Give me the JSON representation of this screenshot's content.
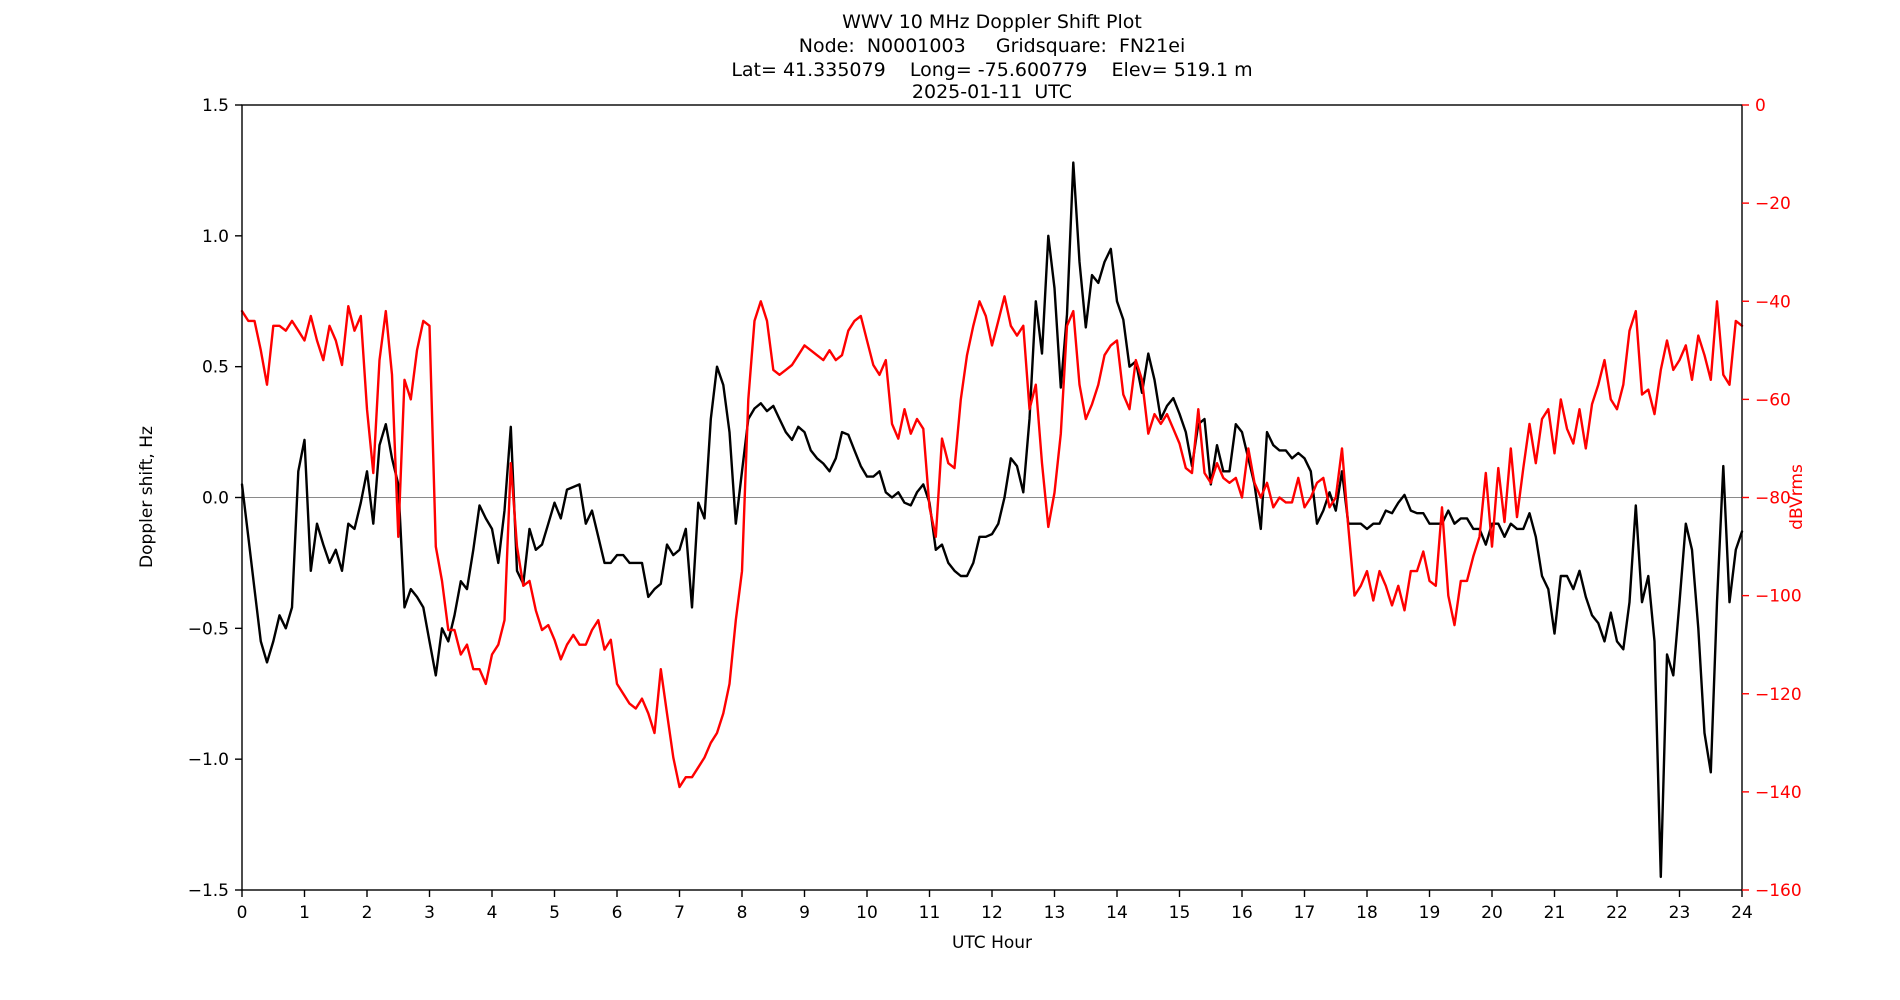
{
  "title": {
    "line1": "WWV 10 MHz Doppler Shift Plot",
    "line2": "Node:  N0001003     Gridsquare:  FN21ei",
    "line3": "Lat= 41.335079    Long= -75.600779    Elev= 519.1 m",
    "line4": "2025-01-11  UTC"
  },
  "colors": {
    "background": "#ffffff",
    "axis": "#000000",
    "zero_line": "#8a8a8a",
    "doppler_series": "#000000",
    "dbv_series": "#ff0000",
    "right_axis_text": "#ff0000"
  },
  "chart_data": {
    "type": "line",
    "title": "WWV 10 MHz Doppler Shift Plot",
    "xlabel": "UTC Hour",
    "ylabel_left": "Doppler shift, Hz",
    "ylabel_right": "dBVrms",
    "x_start": 0,
    "x_step": 0.1,
    "x_range": [
      0,
      24
    ],
    "x_ticks": [
      0,
      1,
      2,
      3,
      4,
      5,
      6,
      7,
      8,
      9,
      10,
      11,
      12,
      13,
      14,
      15,
      16,
      17,
      18,
      19,
      20,
      21,
      22,
      23,
      24
    ],
    "y_left": {
      "range": [
        -1.5,
        1.5
      ],
      "ticks": [
        1.5,
        1.0,
        0.5,
        0.0,
        -0.5,
        -1.0,
        -1.5
      ]
    },
    "y_right": {
      "range": [
        -160,
        0
      ],
      "ticks": [
        0,
        -20,
        -40,
        -60,
        -80,
        -100,
        -120,
        -140,
        -160
      ]
    },
    "grid": "horizontal zero line only",
    "legend": "none",
    "series": [
      {
        "name": "Doppler shift, Hz",
        "axis": "left",
        "color": "#000000",
        "values": [
          0.05,
          -0.15,
          -0.35,
          -0.55,
          -0.63,
          -0.55,
          -0.45,
          -0.5,
          -0.42,
          0.1,
          0.22,
          -0.28,
          -0.1,
          -0.18,
          -0.25,
          -0.2,
          -0.28,
          -0.1,
          -0.12,
          -0.02,
          0.1,
          -0.1,
          0.2,
          0.28,
          0.15,
          0.05,
          -0.42,
          -0.35,
          -0.38,
          -0.42,
          -0.55,
          -0.68,
          -0.5,
          -0.55,
          -0.45,
          -0.32,
          -0.35,
          -0.2,
          -0.03,
          -0.08,
          -0.12,
          -0.25,
          -0.05,
          0.27,
          -0.28,
          -0.33,
          -0.12,
          -0.2,
          -0.18,
          -0.1,
          -0.02,
          -0.08,
          0.03,
          0.04,
          0.05,
          -0.1,
          -0.05,
          -0.15,
          -0.25,
          -0.25,
          -0.22,
          -0.22,
          -0.25,
          -0.25,
          -0.25,
          -0.38,
          -0.35,
          -0.33,
          -0.18,
          -0.22,
          -0.2,
          -0.12,
          -0.42,
          -0.02,
          -0.08,
          0.3,
          0.5,
          0.43,
          0.25,
          -0.1,
          0.1,
          0.3,
          0.34,
          0.36,
          0.33,
          0.35,
          0.3,
          0.25,
          0.22,
          0.27,
          0.25,
          0.18,
          0.15,
          0.13,
          0.1,
          0.15,
          0.25,
          0.24,
          0.18,
          0.12,
          0.08,
          0.08,
          0.1,
          0.02,
          0.0,
          0.02,
          -0.02,
          -0.03,
          0.02,
          0.05,
          -0.02,
          -0.2,
          -0.18,
          -0.25,
          -0.28,
          -0.3,
          -0.3,
          -0.25,
          -0.15,
          -0.15,
          -0.14,
          -0.1,
          0.0,
          0.15,
          0.12,
          0.02,
          0.3,
          0.75,
          0.55,
          1.0,
          0.8,
          0.42,
          0.7,
          1.28,
          0.9,
          0.65,
          0.85,
          0.82,
          0.9,
          0.95,
          0.75,
          0.68,
          0.5,
          0.52,
          0.4,
          0.55,
          0.45,
          0.3,
          0.35,
          0.38,
          0.32,
          0.25,
          0.12,
          0.28,
          0.3,
          0.05,
          0.2,
          0.1,
          0.1,
          0.28,
          0.25,
          0.15,
          0.05,
          -0.12,
          0.25,
          0.2,
          0.18,
          0.18,
          0.15,
          0.17,
          0.15,
          0.1,
          -0.1,
          -0.05,
          0.02,
          -0.05,
          0.1,
          -0.1,
          -0.1,
          -0.1,
          -0.12,
          -0.1,
          -0.1,
          -0.05,
          -0.06,
          -0.02,
          0.01,
          -0.05,
          -0.06,
          -0.06,
          -0.1,
          -0.1,
          -0.1,
          -0.05,
          -0.1,
          -0.08,
          -0.08,
          -0.12,
          -0.12,
          -0.18,
          -0.1,
          -0.1,
          -0.15,
          -0.1,
          -0.12,
          -0.12,
          -0.06,
          -0.15,
          -0.3,
          -0.35,
          -0.52,
          -0.3,
          -0.3,
          -0.35,
          -0.28,
          -0.38,
          -0.45,
          -0.48,
          -0.55,
          -0.44,
          -0.55,
          -0.58,
          -0.4,
          -0.03,
          -0.4,
          -0.3,
          -0.55,
          -1.45,
          -0.6,
          -0.68,
          -0.4,
          -0.1,
          -0.2,
          -0.5,
          -0.9,
          -1.05,
          -0.4,
          0.12,
          -0.4,
          -0.2,
          -0.13
        ]
      },
      {
        "name": "dBVrms",
        "axis": "right",
        "color": "#ff0000",
        "values": [
          -42,
          -44,
          -44,
          -50,
          -57,
          -45,
          -45,
          -46,
          -44,
          -46,
          -48,
          -43,
          -48,
          -52,
          -45,
          -48,
          -53,
          -41,
          -46,
          -43,
          -62,
          -75,
          -52,
          -42,
          -55,
          -88,
          -56,
          -60,
          -50,
          -44,
          -45,
          -90,
          -97,
          -107,
          -107,
          -112,
          -110,
          -115,
          -115,
          -118,
          -112,
          -110,
          -105,
          -73,
          -90,
          -98,
          -97,
          -103,
          -107,
          -106,
          -109,
          -113,
          -110,
          -108,
          -110,
          -110,
          -107,
          -105,
          -111,
          -109,
          -118,
          -120,
          -122,
          -123,
          -121,
          -124,
          -128,
          -115,
          -124,
          -133,
          -139,
          -137,
          -137,
          -135,
          -133,
          -130,
          -128,
          -124,
          -118,
          -105,
          -95,
          -60,
          -44,
          -40,
          -44,
          -54,
          -55,
          -54,
          -53,
          -51,
          -49,
          -50,
          -51,
          -52,
          -50,
          -52,
          -51,
          -46,
          -44,
          -43,
          -48,
          -53,
          -55,
          -52,
          -65,
          -68,
          -62,
          -67,
          -64,
          -66,
          -82,
          -88,
          -68,
          -73,
          -74,
          -60,
          -51,
          -45,
          -40,
          -43,
          -49,
          -44,
          -39,
          -45,
          -47,
          -45,
          -62,
          -57,
          -73,
          -86,
          -79,
          -67,
          -45,
          -42,
          -57,
          -64,
          -61,
          -57,
          -51,
          -49,
          -48,
          -59,
          -62,
          -52,
          -56,
          -67,
          -63,
          -65,
          -63,
          -66,
          -69,
          -74,
          -75,
          -62,
          -75,
          -77,
          -73,
          -76,
          -77,
          -76,
          -80,
          -70,
          -77,
          -80,
          -77,
          -82,
          -80,
          -81,
          -81,
          -76,
          -82,
          -80,
          -77,
          -76,
          -82,
          -80,
          -70,
          -86,
          -100,
          -98,
          -95,
          -101,
          -95,
          -98,
          -102,
          -98,
          -103,
          -95,
          -95,
          -91,
          -97,
          -98,
          -82,
          -100,
          -106,
          -97,
          -97,
          -92,
          -88,
          -75,
          -90,
          -74,
          -85,
          -70,
          -84,
          -74,
          -65,
          -73,
          -64,
          -62,
          -71,
          -60,
          -66,
          -69,
          -62,
          -70,
          -61,
          -57,
          -52,
          -60,
          -62,
          -57,
          -46,
          -42,
          -59,
          -58,
          -63,
          -54,
          -48,
          -54,
          -52,
          -49,
          -56,
          -47,
          -51,
          -56,
          -40,
          -55,
          -57,
          -44,
          -45
        ]
      }
    ]
  }
}
